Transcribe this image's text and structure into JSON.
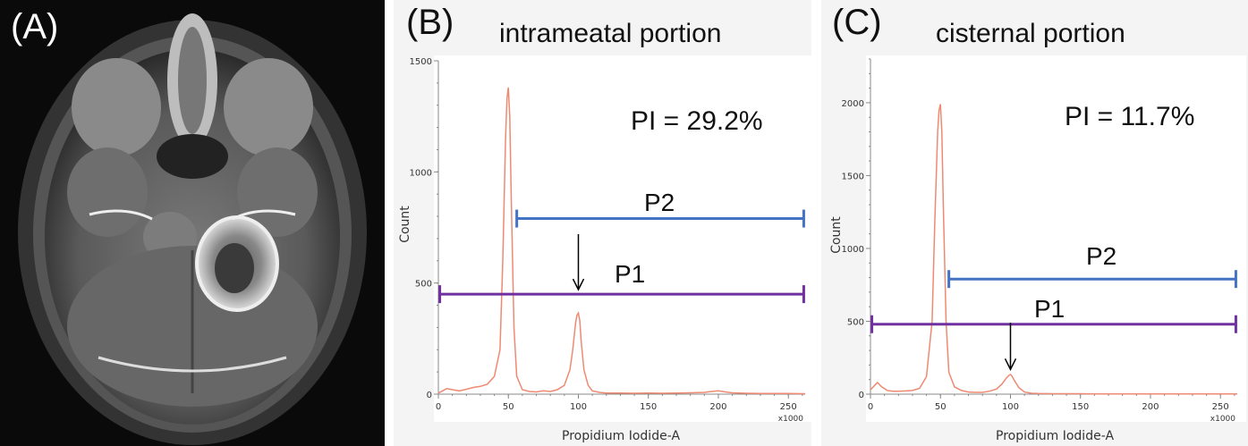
{
  "figure": {
    "panel_a": {
      "letter": "(A)",
      "image_description_icon": "axial-mri-brain-icon"
    },
    "panel_b": {
      "letter": "(B)",
      "title": "intrameatal portion",
      "pi_label": "PI = 29.2%",
      "gate_p1": "P1",
      "gate_p2": "P2",
      "xlabel": "Propidium Iodide-A",
      "ylabel": "Count",
      "x_unit": "x1000"
    },
    "panel_c": {
      "letter": "(C)",
      "title": "cisternal portion",
      "pi_label": "PI = 11.7%",
      "gate_p1": "P1",
      "gate_p2": "P2",
      "xlabel": "Propidium Iodide-A",
      "ylabel": "Count",
      "x_unit": "x1000"
    }
  },
  "colors": {
    "histogram": "#ee8a72",
    "gate_p1": "#7030a0",
    "gate_p2": "#4472c4",
    "axis": "#888888"
  },
  "chart_data": [
    {
      "type": "line",
      "title": "intrameatal portion",
      "xlabel": "Propidium Iodide-A",
      "ylabel": "Count",
      "x_unit": "x1000",
      "xlim": [
        0,
        262
      ],
      "ylim": [
        0,
        1500
      ],
      "xticks": [
        0,
        50,
        100,
        150,
        200,
        250
      ],
      "yticks": [
        0,
        500,
        1000,
        1500
      ],
      "series": [
        {
          "x": [
            0,
            3,
            6,
            10,
            15,
            20,
            25,
            30,
            35,
            40,
            44,
            46,
            48,
            49,
            50,
            51,
            52,
            54,
            56,
            60,
            65,
            70,
            75,
            80,
            85,
            90,
            94,
            96,
            98,
            99,
            100,
            101,
            102,
            104,
            107,
            110,
            115,
            120,
            130,
            140,
            150,
            160,
            170,
            180,
            190,
            195,
            200,
            205,
            210,
            220,
            230,
            240,
            250,
            262
          ],
          "y": [
            5,
            15,
            25,
            20,
            15,
            22,
            30,
            35,
            45,
            80,
            200,
            600,
            1150,
            1330,
            1380,
            1250,
            900,
            300,
            80,
            20,
            12,
            10,
            15,
            12,
            20,
            40,
            110,
            200,
            320,
            355,
            365,
            330,
            240,
            110,
            40,
            15,
            8,
            5,
            5,
            4,
            5,
            4,
            5,
            6,
            8,
            12,
            15,
            10,
            6,
            4,
            3,
            3,
            3,
            2
          ]
        }
      ],
      "gates": [
        {
          "name": "P1",
          "x_start": 1,
          "x_end": 261,
          "y": 450
        },
        {
          "name": "P2",
          "x_start": 56,
          "x_end": 261,
          "y": 790
        }
      ],
      "annotations": [
        {
          "text": "PI = 29.2%"
        },
        {
          "type": "arrow",
          "x": 100,
          "y_from": 720,
          "y_to": 470
        }
      ]
    },
    {
      "type": "line",
      "title": "cisternal portion",
      "xlabel": "Propidium Iodide-A",
      "ylabel": "Count",
      "x_unit": "x1000",
      "xlim": [
        0,
        262
      ],
      "ylim": [
        0,
        2300
      ],
      "xticks": [
        0,
        50,
        100,
        150,
        200,
        250
      ],
      "yticks": [
        0,
        500,
        1000,
        1500,
        2000
      ],
      "series": [
        {
          "x": [
            0,
            3,
            5,
            8,
            12,
            16,
            20,
            25,
            30,
            35,
            40,
            44,
            46,
            48,
            49,
            50,
            51,
            52,
            54,
            56,
            60,
            65,
            70,
            75,
            80,
            85,
            90,
            94,
            97,
            99,
            100,
            101,
            103,
            106,
            110,
            115,
            120,
            130,
            140,
            150,
            160,
            170,
            180,
            190,
            200,
            210,
            220,
            230,
            240,
            250,
            262
          ],
          "y": [
            30,
            60,
            80,
            50,
            25,
            20,
            20,
            22,
            25,
            40,
            120,
            500,
            1200,
            1800,
            1950,
            1990,
            1800,
            1300,
            500,
            150,
            50,
            25,
            15,
            12,
            12,
            20,
            35,
            70,
            110,
            130,
            135,
            125,
            90,
            45,
            15,
            6,
            4,
            3,
            3,
            3,
            2,
            2,
            2,
            2,
            2,
            2,
            2,
            2,
            2,
            2,
            2
          ]
        }
      ],
      "gates": [
        {
          "name": "P1",
          "x_start": 1,
          "x_end": 261,
          "y": 480
        },
        {
          "name": "P2",
          "x_start": 56,
          "x_end": 261,
          "y": 790
        }
      ],
      "annotations": [
        {
          "text": "PI = 11.7%"
        },
        {
          "type": "arrow",
          "x": 100,
          "y_from": 490,
          "y_to": 170
        }
      ]
    }
  ]
}
